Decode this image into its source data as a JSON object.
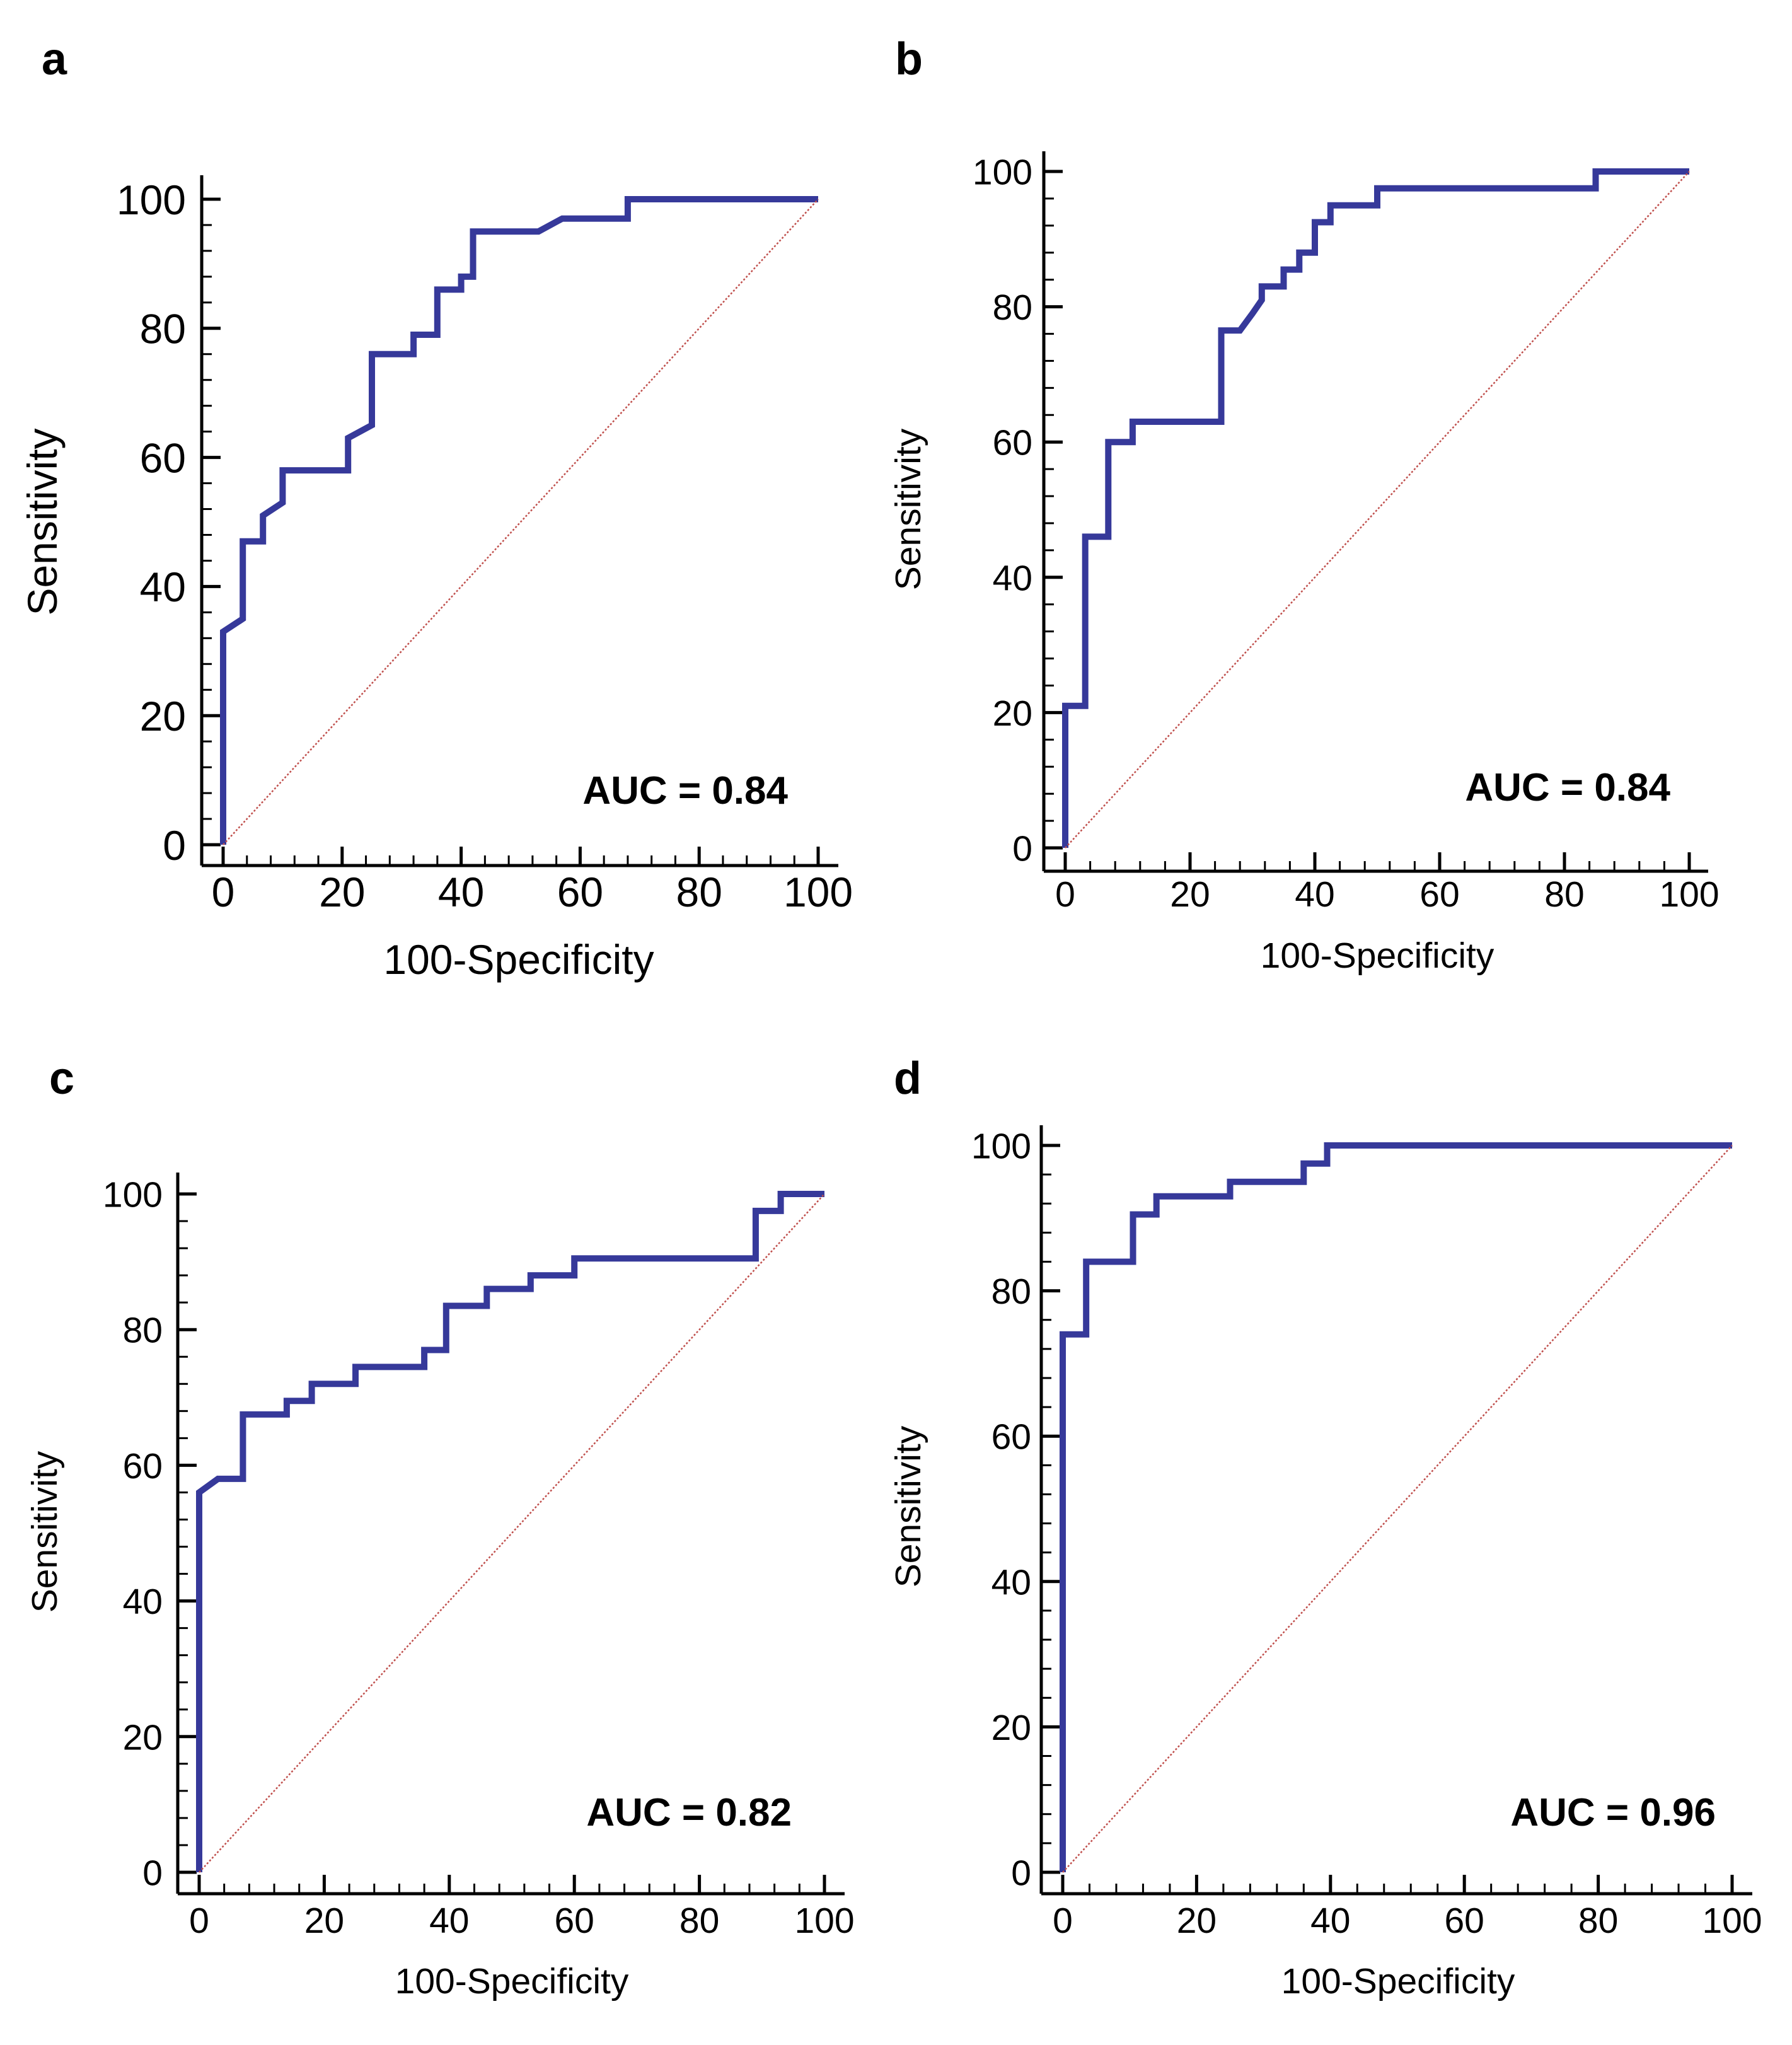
{
  "colors": {
    "roc": "#36399a",
    "diagonal": "#c0504d",
    "axis": "#000000"
  },
  "chart_data": [
    {
      "type": "line",
      "panel": "a",
      "xlabel": "100-Specificity",
      "ylabel": "Sensitivity",
      "xlim": [
        0,
        100
      ],
      "ylim": [
        0,
        100
      ],
      "xticks": [
        0,
        20,
        40,
        60,
        80,
        100
      ],
      "yticks": [
        0,
        20,
        40,
        60,
        80,
        100
      ],
      "annotation": "AUC = 0.84",
      "series": [
        {
          "name": "ROC",
          "x": [
            0,
            0,
            3.3,
            3.3,
            6.7,
            6.7,
            10,
            10,
            21,
            21,
            25,
            25,
            32,
            32,
            36,
            36,
            40,
            40,
            42,
            42,
            53,
            57,
            68,
            68,
            100
          ],
          "y": [
            0,
            33,
            35,
            47,
            47,
            51,
            53,
            58,
            58,
            63,
            65,
            76,
            76,
            79,
            79,
            86,
            86,
            88,
            88,
            95,
            95,
            97,
            97,
            100,
            100
          ]
        },
        {
          "name": "Reference",
          "x": [
            0,
            100
          ],
          "y": [
            0,
            100
          ]
        }
      ]
    },
    {
      "type": "line",
      "panel": "b",
      "xlabel": "100-Specificity",
      "ylabel": "Sensitivity",
      "xlim": [
        0,
        100
      ],
      "ylim": [
        0,
        100
      ],
      "xticks": [
        0,
        20,
        40,
        60,
        80,
        100
      ],
      "yticks": [
        0,
        20,
        40,
        60,
        80,
        100
      ],
      "annotation": "AUC = 0.84",
      "series": [
        {
          "name": "ROC",
          "x": [
            0,
            0,
            3.2,
            3.2,
            6.9,
            6.9,
            10.8,
            10.8,
            25,
            25,
            28,
            30,
            31.5,
            31.5,
            35,
            35,
            37.5,
            37.5,
            40,
            40,
            42.5,
            42.5,
            50,
            50,
            64,
            64,
            85,
            85,
            100
          ],
          "y": [
            0,
            21,
            21,
            46,
            46,
            60,
            60,
            63,
            63,
            76.5,
            76.5,
            79,
            81,
            83,
            83,
            85.5,
            85.5,
            88,
            88,
            92.5,
            92.5,
            95,
            95,
            97.5,
            97.5,
            97.5,
            97.5,
            100,
            100
          ]
        },
        {
          "name": "Reference",
          "x": [
            0,
            100
          ],
          "y": [
            0,
            100
          ]
        }
      ]
    },
    {
      "type": "line",
      "panel": "c",
      "xlabel": "100-Specificity",
      "ylabel": "Sensitivity",
      "xlim": [
        0,
        100
      ],
      "ylim": [
        0,
        100
      ],
      "xticks": [
        0,
        20,
        40,
        60,
        80,
        100
      ],
      "yticks": [
        0,
        20,
        40,
        60,
        80,
        100
      ],
      "annotation": "AUC = 0.82",
      "series": [
        {
          "name": "ROC",
          "x": [
            0,
            0,
            3,
            7,
            7,
            14,
            14,
            18,
            18,
            25,
            25,
            36,
            36,
            39.5,
            39.5,
            46,
            46,
            53,
            53,
            60,
            60,
            89,
            89,
            93,
            93,
            100
          ],
          "y": [
            0,
            56,
            58,
            58,
            67.5,
            67.5,
            69.5,
            69.5,
            72,
            72,
            74.5,
            74.5,
            77,
            77,
            83.5,
            83.5,
            86,
            86,
            88,
            88,
            90.5,
            90.5,
            97.5,
            97.5,
            100,
            100
          ]
        },
        {
          "name": "Reference",
          "x": [
            0,
            100
          ],
          "y": [
            0,
            100
          ]
        }
      ]
    },
    {
      "type": "line",
      "panel": "d",
      "xlabel": "100-Specificity",
      "ylabel": "Sensitivity",
      "xlim": [
        0,
        100
      ],
      "ylim": [
        0,
        100
      ],
      "xticks": [
        0,
        20,
        40,
        60,
        80,
        100
      ],
      "yticks": [
        0,
        20,
        40,
        60,
        80,
        100
      ],
      "annotation": "AUC = 0.96",
      "series": [
        {
          "name": "ROC",
          "x": [
            0,
            0,
            3.5,
            3.5,
            10.5,
            10.5,
            14,
            14,
            25,
            25,
            36,
            36,
            39.5,
            39.5,
            100
          ],
          "y": [
            0,
            74,
            74,
            84,
            84,
            90.5,
            90.5,
            93,
            93,
            95,
            95,
            97.5,
            97.5,
            100,
            100
          ]
        },
        {
          "name": "Reference",
          "x": [
            0,
            100
          ],
          "y": [
            0,
            100
          ]
        }
      ]
    }
  ]
}
